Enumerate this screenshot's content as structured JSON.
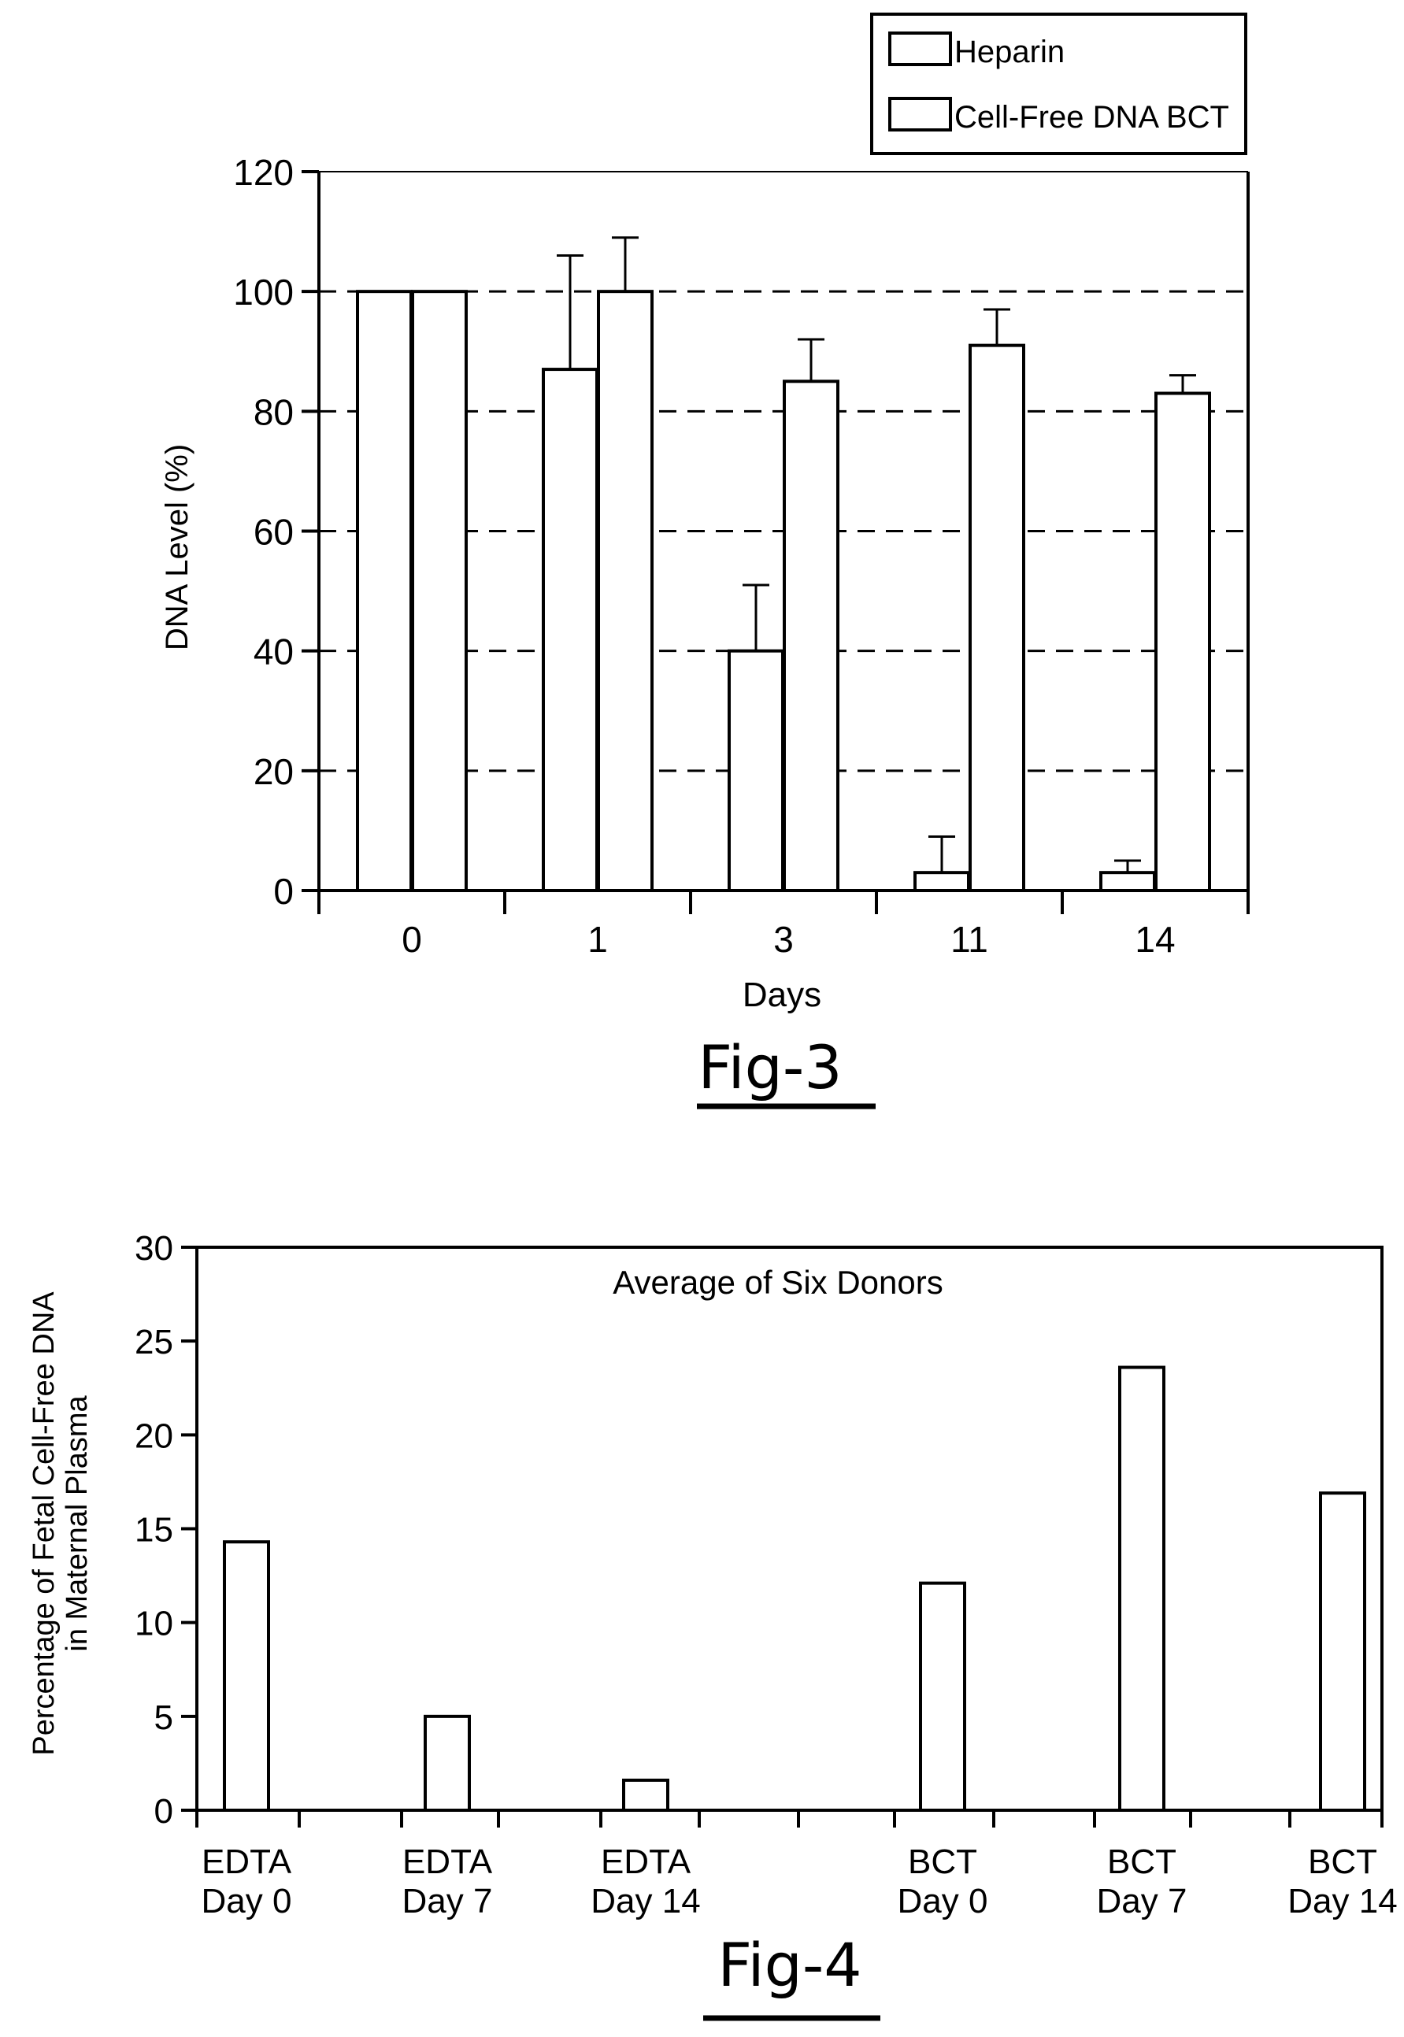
{
  "chart_data": [
    {
      "type": "bar",
      "figure_label": "Fig-3",
      "xlabel": "Days",
      "ylabel": "DNA Level (%)",
      "ylim": [
        0,
        120
      ],
      "yticks": [
        "0",
        "20",
        "40",
        "60",
        "80",
        "100",
        "120"
      ],
      "grid": "dashed horizontal",
      "legend_position": "top-right",
      "categories": [
        "0",
        "1",
        "3",
        "11",
        "14"
      ],
      "series": [
        {
          "name": "Heparin",
          "values": [
            100,
            87,
            40,
            3,
            3
          ],
          "errors": [
            0,
            19,
            11,
            6,
            2
          ]
        },
        {
          "name": "Cell-Free DNA BCT",
          "values": [
            100,
            100,
            85,
            91,
            83
          ],
          "errors": [
            0,
            9,
            7,
            6,
            3
          ]
        }
      ]
    },
    {
      "type": "bar",
      "figure_label": "Fig-4",
      "title": "Average of Six Donors",
      "ylabel": [
        "Percentage of Fetal Cell-Free DNA",
        "in Maternal Plasma"
      ],
      "ylim": [
        0,
        30
      ],
      "yticks": [
        "0",
        "5",
        "10",
        "15",
        "20",
        "25",
        "30"
      ],
      "categories": [
        [
          "EDTA",
          "Day 0"
        ],
        [
          "EDTA",
          "Day 7"
        ],
        [
          "EDTA",
          "Day 14"
        ],
        [
          "BCT",
          "Day 0"
        ],
        [
          "BCT",
          "Day 7"
        ],
        [
          "BCT",
          "Day 14"
        ]
      ],
      "values": [
        14.3,
        5.0,
        1.6,
        12.1,
        23.6,
        16.9
      ]
    }
  ]
}
